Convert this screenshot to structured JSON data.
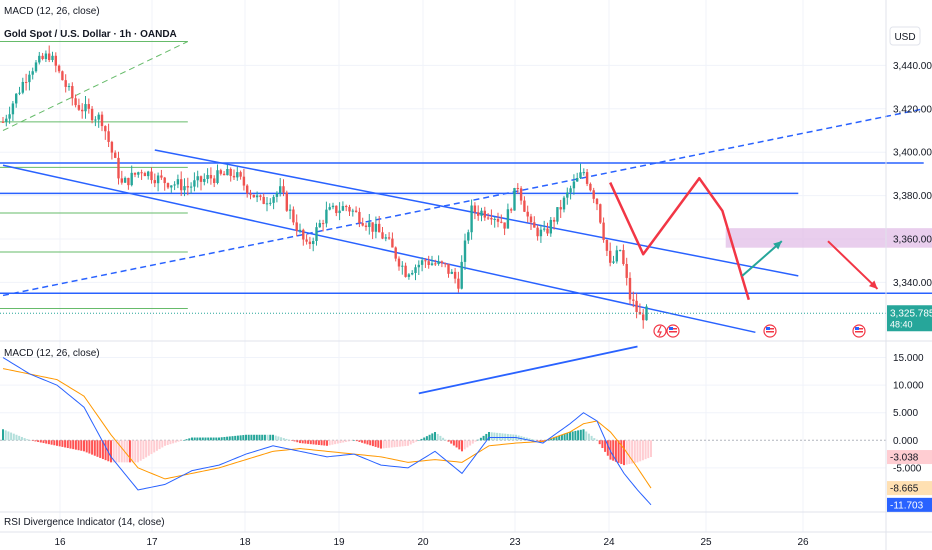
{
  "header": {
    "indicator_top": "MACD (12, 26, close)",
    "symbol_title": "Gold Spot / U.S. Dollar · 1h · OANDA",
    "currency": "USD"
  },
  "colors": {
    "up": "#26a69a",
    "down": "#ef5350",
    "trend": "#2962ff",
    "level_green": "#66bb6a",
    "arrow_green": "#26a69a",
    "arrow_red": "#f23645",
    "zone": "#e1bee7",
    "macd": "#2962ff",
    "signal": "#ff9800"
  },
  "chart_data": [
    {
      "type": "candlestick",
      "title": "Gold Spot / U.S. Dollar · 1h · OANDA",
      "ylim": [
        3313,
        3460
      ],
      "y_ticks": [
        "3,440.000",
        "3,420.000",
        "3,400.000",
        "3,380.000",
        "3,360.000",
        "3,340.000"
      ],
      "y_tick_values": [
        3440,
        3420,
        3400,
        3380,
        3360,
        3340
      ],
      "x_ticks": [
        "16",
        "17",
        "18",
        "19",
        "20",
        "23",
        "24",
        "25",
        "26"
      ],
      "last_price": "3,325.785",
      "last_price_value": 3325.785,
      "countdown": "48:40",
      "anchors_close": [
        [
          0,
          3414
        ],
        [
          8,
          3438
        ],
        [
          14,
          3445
        ],
        [
          22,
          3422
        ],
        [
          30,
          3415
        ],
        [
          36,
          3385
        ],
        [
          42,
          3392
        ],
        [
          48,
          3387
        ],
        [
          56,
          3384
        ],
        [
          62,
          3388
        ],
        [
          70,
          3390
        ],
        [
          78,
          3377
        ],
        [
          84,
          3382
        ],
        [
          92,
          3356
        ],
        [
          98,
          3372
        ],
        [
          104,
          3375
        ],
        [
          110,
          3368
        ],
        [
          116,
          3360
        ],
        [
          122,
          3345
        ],
        [
          128,
          3350
        ],
        [
          134,
          3347
        ],
        [
          138,
          3340
        ],
        [
          142,
          3373
        ],
        [
          148,
          3372
        ],
        [
          152,
          3367
        ],
        [
          156,
          3385
        ],
        [
          160,
          3365
        ],
        [
          164,
          3362
        ],
        [
          168,
          3372
        ],
        [
          172,
          3383
        ],
        [
          176,
          3391
        ],
        [
          180,
          3377
        ],
        [
          184,
          3347
        ],
        [
          187,
          3355
        ],
        [
          190,
          3333
        ],
        [
          193,
          3324
        ],
        [
          195,
          3326
        ]
      ],
      "candle_count": 196,
      "levels": [
        {
          "y": 3451,
          "x_end": 56,
          "style": "green"
        },
        {
          "y": 3414,
          "x_end": 56,
          "style": "green"
        },
        {
          "y": 3393,
          "x_end": 56,
          "style": "green"
        },
        {
          "y": 3372,
          "x_end": 56,
          "style": "green"
        },
        {
          "y": 3354,
          "x_end": 56,
          "style": "green"
        },
        {
          "y": 3328,
          "x_end": 56,
          "style": "green"
        },
        {
          "y": 3395,
          "x_end": 279,
          "style": "blue"
        },
        {
          "y": 3381,
          "x_end": 241,
          "style": "blue"
        },
        {
          "y": 3335,
          "x_end": 302,
          "style": "blue"
        }
      ],
      "trendlines": [
        {
          "from": [
            46,
            3401
          ],
          "to": [
            241,
            3343
          ],
          "style": "solid"
        },
        {
          "from": [
            0,
            3394
          ],
          "to": [
            228,
            3317
          ],
          "style": "solid"
        },
        {
          "from": [
            0,
            3334
          ],
          "to": [
            279,
            3420
          ],
          "style": "dashed"
        },
        {
          "from": [
            0,
            3410
          ],
          "to": [
            56,
            3451
          ],
          "style": "dashed-green"
        }
      ],
      "zone": {
        "x_from": 219,
        "x_to": 300,
        "y_low": 3356,
        "y_high": 3365
      },
      "pattern_path": [
        [
          184,
          3386
        ],
        [
          194,
          3353
        ],
        [
          211,
          3388
        ],
        [
          218,
          3373
        ],
        [
          226,
          3332
        ]
      ],
      "arrow_up": {
        "from": [
          224,
          3343
        ],
        "to": [
          236,
          3359
        ]
      },
      "arrow_down": {
        "from": [
          250,
          3359
        ],
        "to": [
          265,
          3337
        ]
      }
    },
    {
      "type": "macd",
      "title": "MACD (12, 26, close)",
      "ylim": [
        -13,
        18
      ],
      "y_ticks": [
        "15.000",
        "10.000",
        "5.000",
        "0.000",
        "-5.000"
      ],
      "y_tick_values": [
        15,
        10,
        5,
        0,
        -5
      ],
      "labels": [
        {
          "text": "-3.038",
          "value": -3.038,
          "role": "histogram"
        },
        {
          "text": "-8.665",
          "value": -8.665,
          "role": "signal"
        },
        {
          "text": "-11.703",
          "value": -11.703,
          "role": "macd"
        }
      ],
      "macd_anchors": [
        [
          0,
          15
        ],
        [
          10,
          12
        ],
        [
          20,
          10
        ],
        [
          30,
          6
        ],
        [
          40,
          -3
        ],
        [
          50,
          -9
        ],
        [
          60,
          -8
        ],
        [
          70,
          -5.5
        ],
        [
          80,
          -4.5
        ],
        [
          90,
          -2.5
        ],
        [
          100,
          -1
        ],
        [
          110,
          -2
        ],
        [
          120,
          -3
        ],
        [
          130,
          -2.5
        ],
        [
          140,
          -4.5
        ],
        [
          150,
          -5
        ],
        [
          160,
          -2
        ],
        [
          170,
          -6
        ],
        [
          180,
          0.5
        ],
        [
          190,
          0.5
        ],
        [
          200,
          -0.5
        ],
        [
          210,
          3
        ],
        [
          215,
          5
        ],
        [
          220,
          3.5
        ],
        [
          225,
          -2
        ],
        [
          230,
          -6
        ],
        [
          235,
          -9
        ],
        [
          240,
          -11.7
        ]
      ],
      "signal_anchors": [
        [
          0,
          13
        ],
        [
          10,
          12
        ],
        [
          20,
          11
        ],
        [
          30,
          8
        ],
        [
          40,
          1
        ],
        [
          50,
          -5
        ],
        [
          60,
          -7
        ],
        [
          70,
          -6
        ],
        [
          80,
          -5
        ],
        [
          90,
          -3.5
        ],
        [
          100,
          -2
        ],
        [
          110,
          -1.5
        ],
        [
          120,
          -2
        ],
        [
          130,
          -2.5
        ],
        [
          140,
          -3
        ],
        [
          150,
          -4
        ],
        [
          160,
          -3.5
        ],
        [
          170,
          -4
        ],
        [
          180,
          -1
        ],
        [
          190,
          -0.5
        ],
        [
          200,
          -0.2
        ],
        [
          210,
          1.5
        ],
        [
          215,
          3
        ],
        [
          220,
          3.5
        ],
        [
          225,
          1.5
        ],
        [
          230,
          -1.5
        ],
        [
          235,
          -5
        ],
        [
          240,
          -8.665
        ]
      ],
      "divergence_line": {
        "from": [
          154,
          8.5
        ],
        "to": [
          235,
          17
        ]
      }
    },
    {
      "type": "indicator-label",
      "title": "RSI Divergence Indicator (14, close)"
    }
  ]
}
